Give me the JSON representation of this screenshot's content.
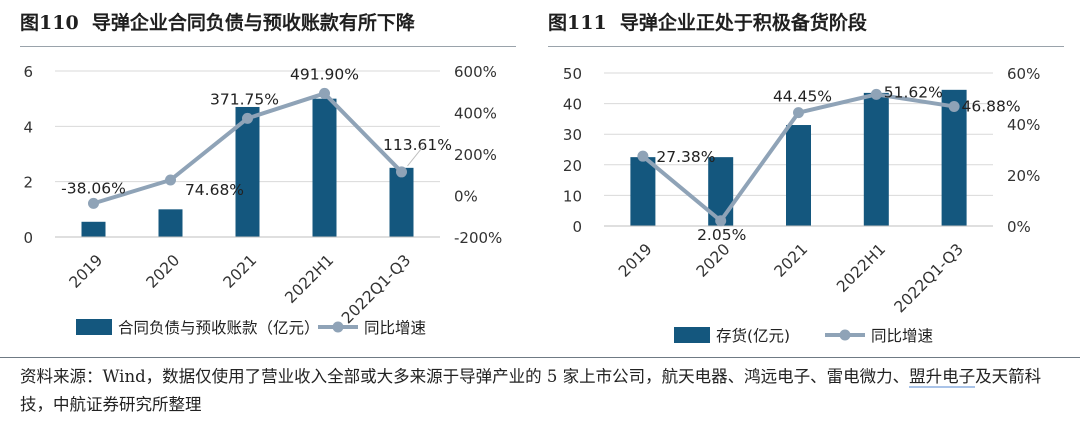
{
  "figure1": {
    "label": "图110",
    "title": "导弹企业合同负债与预收账款有所下降"
  },
  "figure2": {
    "label": "图111",
    "title": "导弹企业正处于积极备货阶段"
  },
  "source": {
    "part1": "资料来源：Wind，数据仅使用了营业收入全部或大多来源于导弹产业的 5 家上市公司，航天电器、鸿远电子、雷电微力、",
    "underlined": "盟升电子",
    "part2": "及天箭科技，中航证券研究所整理"
  },
  "colors": {
    "bar": "#14577e",
    "line": "#8fa3b7",
    "rule": "#9aa3ab"
  },
  "chart_data": [
    {
      "type": "bar",
      "categories": [
        "2019",
        "2020",
        "2021",
        "2022H1",
        "2022Q1-Q3"
      ],
      "series": [
        {
          "name": "合同负债与预收账款（亿元）",
          "type": "bar",
          "axis": "left",
          "values": [
            0.55,
            1.0,
            4.7,
            5.0,
            2.5
          ]
        },
        {
          "name": "同比增速",
          "type": "line",
          "axis": "right",
          "values": [
            -38.06,
            74.68,
            371.75,
            491.9,
            113.61
          ],
          "labels": [
            "-38.06%",
            "74.68%",
            "371.75%",
            "491.90%",
            "113.61%"
          ]
        }
      ],
      "ylim": [
        0,
        6
      ],
      "y_ticks": [
        "0",
        "2",
        "4",
        "6"
      ],
      "y2lim": [
        -200,
        600
      ],
      "y2_ticks": [
        "-200%",
        "0%",
        "200%",
        "400%",
        "600%"
      ],
      "legend_position": "bottom"
    },
    {
      "type": "bar",
      "categories": [
        "2019",
        "2020",
        "2021",
        "2022H1",
        "2022Q1-Q3"
      ],
      "series": [
        {
          "name": "存货(亿元)",
          "type": "bar",
          "axis": "left",
          "values": [
            22.5,
            22.5,
            33,
            43.5,
            44.5
          ]
        },
        {
          "name": "同比增速",
          "type": "line",
          "axis": "right",
          "values": [
            27.38,
            2.05,
            44.45,
            51.62,
            46.88
          ],
          "labels": [
            "27.38%",
            "2.05%",
            "44.45%",
            "51.62%",
            "46.88%"
          ]
        }
      ],
      "ylim": [
        0,
        50
      ],
      "y_ticks": [
        "0",
        "10",
        "20",
        "30",
        "40",
        "50"
      ],
      "y2lim": [
        0,
        60
      ],
      "y2_ticks": [
        "0%",
        "20%",
        "40%",
        "60%"
      ],
      "legend_position": "bottom"
    }
  ]
}
